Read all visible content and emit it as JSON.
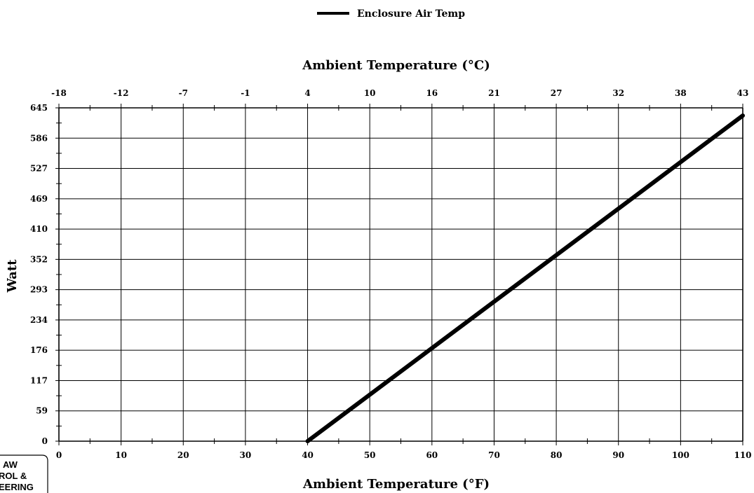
{
  "chart_data": {
    "type": "line",
    "legend": {
      "label": "Enclosure Air Temp",
      "position": "top-center"
    },
    "top_axis": {
      "title": "Ambient Temperature (°C)",
      "ticks": [
        "-18",
        "-12",
        "-7",
        "-1",
        "4",
        "10",
        "16",
        "21",
        "27",
        "32",
        "38",
        "43"
      ]
    },
    "bottom_axis": {
      "title": "Ambient Temperature (°F)",
      "ticks": [
        0,
        10,
        20,
        30,
        40,
        50,
        60,
        70,
        80,
        90,
        100,
        110
      ],
      "range": [
        0,
        110
      ]
    },
    "y_axis": {
      "title": "Watt",
      "ticks": [
        0,
        59,
        117,
        176,
        234,
        293,
        352,
        410,
        469,
        527,
        586,
        645
      ],
      "range": [
        0,
        645
      ]
    },
    "grid": true,
    "series": [
      {
        "name": "Enclosure Air Temp",
        "x": [
          40,
          110
        ],
        "y": [
          0,
          630
        ]
      }
    ],
    "colors": {
      "line": "#000000",
      "grid": "#000000"
    }
  },
  "logo": {
    "lines": [
      "AW",
      "ROL &",
      "EERING"
    ]
  }
}
